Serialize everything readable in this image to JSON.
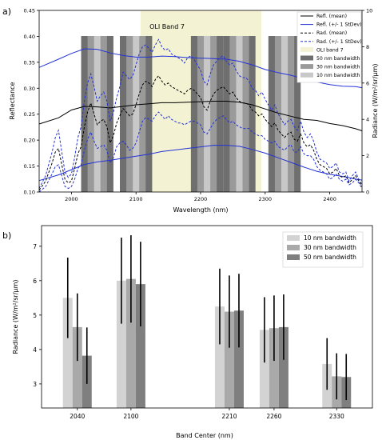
{
  "panels": {
    "a": "a)",
    "b": "b)"
  },
  "chart_data": [
    {
      "type": "line",
      "panel": "a)",
      "title": "",
      "xlabel": "Wavelength (nm)",
      "ylabel": "Reflectance",
      "ylabel_right": "Radiance (W/m²/sr/µm)",
      "xlim": [
        1950,
        2450
      ],
      "ylim": [
        0.1,
        0.45
      ],
      "ylim_right": [
        0,
        10
      ],
      "xticks": [
        2000,
        2100,
        2200,
        2300,
        2400
      ],
      "yticks": [
        0.1,
        0.15,
        0.2,
        0.25,
        0.3,
        0.35,
        0.4,
        0.45
      ],
      "yticks_right": [
        0,
        2,
        4,
        6,
        8,
        10
      ],
      "oli_band": {
        "label": "OLI Band 7",
        "range": [
          2107,
          2294
        ],
        "color": "#f3f3d3"
      },
      "band_centers": [
        {
          "label": "2040",
          "center": 2040
        },
        {
          "label": "2100",
          "center": 2100
        },
        {
          "label": "2210",
          "center": 2210
        },
        {
          "label": "2260",
          "center": 2260
        },
        {
          "label": "2330",
          "center": 2330
        }
      ],
      "bandwidths": [
        {
          "name": "50 nm bandwidth",
          "width": 50,
          "color": "#6f6f6f"
        },
        {
          "name": "30 nm bandwidth",
          "width": 30,
          "color": "#9a9a9a"
        },
        {
          "name": "10 nm bandwidth",
          "width": 10,
          "color": "#c8c8c8"
        }
      ],
      "series": [
        {
          "name": "Refl. (mean)",
          "axis": "left",
          "color": "#000000",
          "dash": "solid",
          "x": [
            1950,
            1980,
            2000,
            2020,
            2040,
            2060,
            2080,
            2100,
            2120,
            2140,
            2160,
            2180,
            2200,
            2220,
            2240,
            2260,
            2280,
            2300,
            2320,
            2340,
            2360,
            2380,
            2400,
            2420,
            2440,
            2450
          ],
          "y": [
            0.231,
            0.243,
            0.258,
            0.265,
            0.264,
            0.262,
            0.265,
            0.268,
            0.27,
            0.272,
            0.272,
            0.273,
            0.274,
            0.275,
            0.275,
            0.273,
            0.268,
            0.26,
            0.252,
            0.246,
            0.24,
            0.238,
            0.232,
            0.228,
            0.222,
            0.218
          ]
        },
        {
          "name": "Refl. (+/- 1 StDev)",
          "axis": "left",
          "color": "#2433d6",
          "dash": "solid",
          "x": [
            1950,
            1980,
            2000,
            2020,
            2040,
            2060,
            2080,
            2100,
            2120,
            2140,
            2160,
            2180,
            2200,
            2220,
            2240,
            2260,
            2280,
            2300,
            2320,
            2340,
            2360,
            2380,
            2400,
            2420,
            2440,
            2450
          ],
          "y": [
            0.34,
            0.356,
            0.367,
            0.376,
            0.375,
            0.368,
            0.363,
            0.36,
            0.36,
            0.362,
            0.361,
            0.359,
            0.358,
            0.357,
            0.356,
            0.352,
            0.345,
            0.336,
            0.33,
            0.325,
            0.318,
            0.312,
            0.307,
            0.304,
            0.303,
            0.301
          ]
        },
        {
          "name": "",
          "axis": "left",
          "color": "#2433d6",
          "dash": "solid",
          "x": [
            1950,
            1980,
            2000,
            2020,
            2040,
            2060,
            2080,
            2100,
            2120,
            2140,
            2160,
            2180,
            2200,
            2220,
            2240,
            2260,
            2280,
            2300,
            2320,
            2340,
            2360,
            2380,
            2400,
            2420,
            2440,
            2450
          ],
          "y": [
            0.122,
            0.133,
            0.143,
            0.153,
            0.158,
            0.161,
            0.165,
            0.169,
            0.173,
            0.178,
            0.181,
            0.184,
            0.187,
            0.19,
            0.19,
            0.188,
            0.182,
            0.175,
            0.166,
            0.157,
            0.148,
            0.14,
            0.134,
            0.13,
            0.125,
            0.123
          ]
        },
        {
          "name": "Rad. (mean)",
          "axis": "right",
          "color": "#000000",
          "dash": "dashed",
          "x": [
            1950,
            1960,
            1970,
            1975,
            1980,
            1985,
            1990,
            1995,
            2000,
            2005,
            2010,
            2015,
            2020,
            2025,
            2030,
            2035,
            2040,
            2045,
            2050,
            2055,
            2060,
            2065,
            2070,
            2075,
            2080,
            2085,
            2090,
            2095,
            2100,
            2105,
            2110,
            2115,
            2120,
            2125,
            2130,
            2135,
            2140,
            2145,
            2150,
            2155,
            2160,
            2165,
            2170,
            2175,
            2180,
            2185,
            2190,
            2195,
            2200,
            2205,
            2210,
            2215,
            2220,
            2225,
            2230,
            2235,
            2240,
            2245,
            2250,
            2255,
            2260,
            2265,
            2270,
            2275,
            2280,
            2285,
            2290,
            2295,
            2300,
            2305,
            2310,
            2315,
            2320,
            2325,
            2330,
            2335,
            2340,
            2345,
            2350,
            2355,
            2360,
            2365,
            2370,
            2375,
            2380,
            2385,
            2390,
            2395,
            2400,
            2405,
            2410,
            2415,
            2420,
            2425,
            2430,
            2435,
            2440,
            2445,
            2450
          ],
          "y": [
            0.1,
            0.6,
            1.6,
            2.2,
            2.4,
            1.5,
            0.7,
            0.5,
            0.6,
            1.3,
            2.1,
            2.5,
            3.6,
            4.4,
            4.9,
            4.3,
            3.7,
            3.9,
            4.0,
            3.6,
            2.7,
            3.1,
            3.8,
            4.2,
            4.6,
            4.4,
            4.2,
            4.3,
            4.8,
            5.4,
            5.9,
            6.1,
            6.0,
            5.8,
            6.2,
            6.4,
            6.1,
            5.9,
            6.0,
            5.8,
            5.7,
            5.6,
            5.5,
            5.4,
            5.6,
            5.7,
            5.6,
            5.4,
            5.2,
            4.7,
            4.5,
            5.0,
            5.4,
            5.6,
            5.7,
            5.8,
            5.6,
            5.4,
            5.5,
            5.2,
            5.0,
            4.9,
            4.9,
            4.8,
            4.5,
            4.4,
            4.2,
            4.3,
            4.0,
            3.8,
            3.6,
            3.8,
            3.4,
            3.2,
            3.0,
            3.2,
            3.3,
            2.9,
            2.8,
            3.2,
            2.7,
            2.5,
            2.6,
            2.3,
            1.8,
            1.5,
            1.4,
            1.3,
            1.0,
            1.1,
            1.3,
            0.9,
            0.8,
            0.9,
            0.5,
            0.7,
            0.9,
            0.6,
            0.3
          ]
        },
        {
          "name": "Rad. (+/- 1 StDev)",
          "axis": "right",
          "color": "#2433d6",
          "dash": "dashed",
          "x": [
            1950,
            1960,
            1970,
            1975,
            1980,
            1985,
            1990,
            1995,
            2000,
            2005,
            2010,
            2015,
            2020,
            2025,
            2030,
            2035,
            2040,
            2045,
            2050,
            2055,
            2060,
            2065,
            2070,
            2075,
            2080,
            2085,
            2090,
            2095,
            2100,
            2105,
            2110,
            2115,
            2120,
            2125,
            2130,
            2135,
            2140,
            2145,
            2150,
            2155,
            2160,
            2165,
            2170,
            2175,
            2180,
            2185,
            2190,
            2195,
            2200,
            2205,
            2210,
            2215,
            2220,
            2225,
            2230,
            2235,
            2240,
            2245,
            2250,
            2255,
            2260,
            2265,
            2270,
            2275,
            2280,
            2285,
            2290,
            2295,
            2300,
            2305,
            2310,
            2315,
            2320,
            2325,
            2330,
            2335,
            2340,
            2345,
            2350,
            2355,
            2360,
            2365,
            2370,
            2375,
            2380,
            2385,
            2390,
            2395,
            2400,
            2405,
            2410,
            2415,
            2420,
            2425,
            2430,
            2435,
            2440,
            2445,
            2450
          ],
          "y": [
            0.2,
            0.9,
            2.2,
            3.0,
            3.4,
            2.2,
            1.1,
            0.8,
            1.0,
            1.9,
            3.0,
            3.6,
            5.0,
            6.0,
            6.5,
            5.8,
            5.0,
            5.3,
            5.5,
            5.0,
            3.9,
            4.4,
            5.2,
            5.8,
            6.6,
            6.4,
            6.2,
            6.4,
            7.0,
            7.6,
            8.0,
            8.1,
            7.9,
            7.7,
            8.1,
            8.4,
            8.0,
            7.8,
            7.9,
            7.6,
            7.5,
            7.4,
            7.3,
            7.1,
            7.4,
            7.5,
            7.3,
            7.0,
            6.7,
            6.1,
            5.9,
            6.5,
            7.0,
            7.2,
            7.4,
            7.5,
            7.2,
            7.0,
            7.1,
            6.7,
            6.4,
            6.3,
            6.3,
            6.1,
            5.7,
            5.6,
            5.3,
            5.5,
            5.1,
            4.8,
            4.5,
            4.8,
            4.3,
            4.0,
            3.7,
            3.9,
            4.0,
            3.6,
            3.4,
            3.9,
            3.3,
            3.0,
            3.2,
            2.8,
            2.2,
            1.8,
            1.7,
            1.6,
            1.3,
            1.4,
            1.6,
            1.1,
            1.0,
            1.1,
            0.6,
            0.9,
            1.1,
            0.7,
            0.4
          ]
        },
        {
          "name": "",
          "axis": "right",
          "color": "#2433d6",
          "dash": "dashed",
          "x": [
            1950,
            1960,
            1970,
            1975,
            1980,
            1985,
            1990,
            1995,
            2000,
            2005,
            2010,
            2015,
            2020,
            2025,
            2030,
            2035,
            2040,
            2045,
            2050,
            2055,
            2060,
            2065,
            2070,
            2075,
            2080,
            2085,
            2090,
            2095,
            2100,
            2105,
            2110,
            2115,
            2120,
            2125,
            2130,
            2135,
            2140,
            2145,
            2150,
            2155,
            2160,
            2165,
            2170,
            2175,
            2180,
            2185,
            2190,
            2195,
            2200,
            2205,
            2210,
            2215,
            2220,
            2225,
            2230,
            2235,
            2240,
            2245,
            2250,
            2255,
            2260,
            2265,
            2270,
            2275,
            2280,
            2285,
            2290,
            2295,
            2300,
            2305,
            2310,
            2315,
            2320,
            2325,
            2330,
            2335,
            2340,
            2345,
            2350,
            2355,
            2360,
            2365,
            2370,
            2375,
            2380,
            2385,
            2390,
            2395,
            2400,
            2405,
            2410,
            2415,
            2420,
            2425,
            2430,
            2435,
            2440,
            2445,
            2450
          ],
          "y": [
            0.0,
            0.3,
            1.0,
            1.4,
            1.5,
            0.9,
            0.3,
            0.2,
            0.3,
            0.7,
            1.3,
            1.5,
            2.3,
            2.9,
            3.3,
            2.8,
            2.4,
            2.5,
            2.6,
            2.3,
            1.6,
            1.9,
            2.5,
            2.7,
            2.8,
            2.6,
            2.3,
            2.4,
            2.7,
            3.3,
            3.9,
            4.1,
            4.0,
            3.9,
            4.2,
            4.4,
            4.2,
            4.0,
            4.2,
            4.0,
            3.9,
            3.8,
            3.8,
            3.7,
            3.8,
            3.9,
            3.9,
            3.8,
            3.7,
            3.3,
            3.2,
            3.5,
            3.8,
            4.0,
            4.1,
            4.2,
            4.0,
            3.8,
            3.9,
            3.7,
            3.6,
            3.5,
            3.5,
            3.5,
            3.3,
            3.2,
            3.1,
            3.1,
            2.9,
            2.8,
            2.7,
            2.8,
            2.5,
            2.4,
            2.3,
            2.5,
            2.6,
            2.2,
            2.2,
            2.5,
            2.1,
            2.0,
            2.0,
            1.8,
            1.4,
            1.2,
            1.1,
            1.0,
            0.7,
            0.8,
            1.0,
            0.7,
            0.6,
            0.7,
            0.4,
            0.5,
            0.7,
            0.5,
            0.2
          ]
        }
      ],
      "legend": [
        "Refl. (mean)",
        "Refl. (+/- 1 StDev)",
        "Rad. (mean)",
        "Rad. (+/- 1 StDev)",
        "OLI band 7",
        "50 nm bandwidth",
        "30 nm bandwidth",
        "10 nm bandwidth"
      ],
      "legend_position": "top-right",
      "grid": false
    },
    {
      "type": "bar",
      "panel": "b)",
      "xlabel": "Band Center (nm)",
      "ylabel": "Radiance (W/m²/sr/µm)",
      "ylim": [
        2.3,
        7.6
      ],
      "yticks": [
        3,
        4,
        5,
        6,
        7
      ],
      "categories": [
        "2040",
        "2100",
        "2210",
        "2260",
        "2330"
      ],
      "category_x": [
        2040,
        2100,
        2210,
        2260,
        2330
      ],
      "xlim": [
        2000,
        2370
      ],
      "series": [
        {
          "name": "10 nm bandwidth",
          "color": "#d3d3d3",
          "values": [
            5.5,
            6.0,
            5.25,
            4.57,
            3.58
          ],
          "errors": [
            1.17,
            1.25,
            1.1,
            0.95,
            0.75
          ]
        },
        {
          "name": "30 nm bandwidth",
          "color": "#a9a9a9",
          "values": [
            4.65,
            6.05,
            5.1,
            4.62,
            3.22
          ],
          "errors": [
            0.98,
            1.27,
            1.05,
            0.95,
            0.67
          ]
        },
        {
          "name": "50 nm bandwidth",
          "color": "#7f7f7f",
          "values": [
            3.82,
            5.9,
            5.13,
            4.65,
            3.2
          ],
          "errors": [
            0.82,
            1.23,
            1.07,
            0.95,
            0.67
          ]
        }
      ],
      "legend_position": "top-right",
      "grid": false
    }
  ]
}
